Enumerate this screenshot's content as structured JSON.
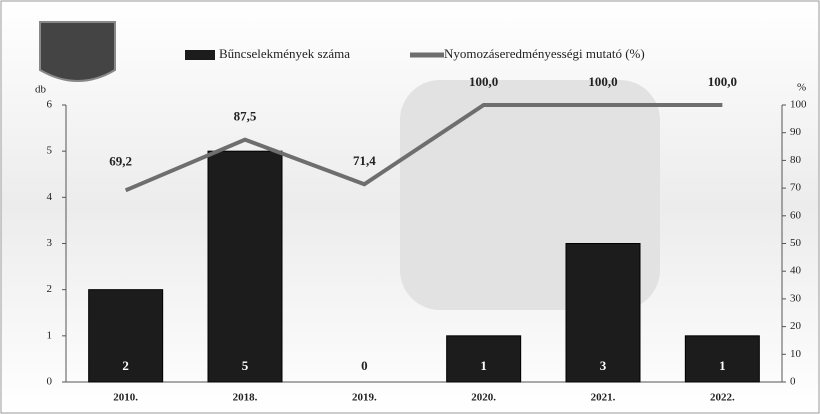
{
  "chart_data": {
    "type": "bar",
    "ylabel": "db",
    "y2label": "%",
    "categories": [
      "2010.",
      "2018.",
      "2019.",
      "2020.",
      "2021.",
      "2022."
    ],
    "series": [
      {
        "name": "Bűncselekmények száma",
        "type": "bar",
        "color": "#1c1c1c",
        "values": [
          2,
          5,
          0,
          1,
          3,
          1
        ]
      },
      {
        "name": "Nyomozáseredményességi mutató (%)",
        "type": "line",
        "axis": "y2",
        "color": "#6e6e6e",
        "values": [
          69.2,
          87.5,
          71.4,
          100.0,
          100.0,
          100.0
        ],
        "value_labels": [
          "69,2",
          "87,5",
          "71,4",
          "100,0",
          "100,0",
          "100,0"
        ]
      }
    ],
    "ylim": [
      0,
      6
    ],
    "yticks": [
      0,
      1,
      2,
      3,
      4,
      5,
      6
    ],
    "y2lim": [
      0,
      100
    ],
    "y2ticks": [
      0,
      10,
      20,
      30,
      40,
      50,
      60,
      70,
      80,
      90,
      100
    ],
    "legend": "top"
  }
}
